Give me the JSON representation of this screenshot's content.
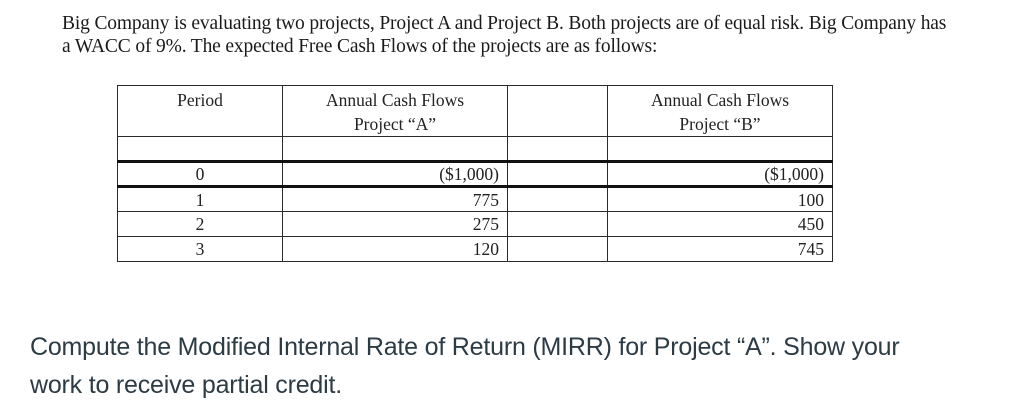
{
  "intro": {
    "lines": [
      "Big Company is evaluating two projects, Project A and Project B. Both projects are of equal risk. Big Company has",
      "a WACC of 9%. The expected Free Cash Flows of the projects are as follows:"
    ]
  },
  "table": {
    "headers": {
      "period": "Period",
      "project_a": [
        "Annual Cash Flows",
        "Project “A”"
      ],
      "blank": "",
      "project_b": [
        "Annual Cash Flows",
        "Project “B”"
      ]
    },
    "rows": [
      {
        "period": "0",
        "project_a": "($1,000)",
        "blank": "",
        "project_b": "($1,000)"
      },
      {
        "period": "1",
        "project_a": "775",
        "blank": "",
        "project_b": "100"
      },
      {
        "period": "2",
        "project_a": "275",
        "blank": "",
        "project_b": "450"
      },
      {
        "period": "3",
        "project_a": "120",
        "blank": "",
        "project_b": "745"
      }
    ]
  },
  "question": {
    "lines": [
      "Compute the Modified Internal Rate of Return (MIRR) for Project “A”.  Show your",
      "work to receive partial credit."
    ]
  },
  "colors": {
    "question_text": "#2d3b45",
    "body_text": "#1a1a1a",
    "table_border": "#2b2b2b"
  }
}
